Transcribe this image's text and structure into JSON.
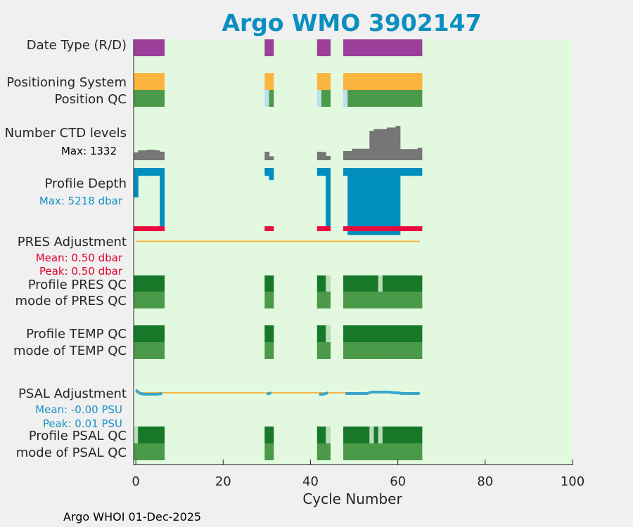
{
  "title": "Argo WMO 3902147",
  "footer": "Argo WHOI 01-Dec-2025",
  "colors": {
    "background": "#e2f9e0",
    "title": "#0b8fc0",
    "date_type": "#9b3f9a",
    "positioning": "#fbb53e",
    "qc_good": "#4a9a49",
    "qc_dark": "#167828",
    "qc_light": "#b8dcba",
    "pos_light": "#bde0ef",
    "ctd": "#767676",
    "depth": "#008ebe",
    "pres_red": "#ea0a3d",
    "adj_line": "#f5b744",
    "psal_line": "#3aa7c9",
    "stat_red": "#e0002d",
    "stat_blue": "#1792c2"
  },
  "rows": {
    "date_type": "Date Type (R/D)",
    "positioning_system": "Positioning System",
    "position_qc": "Position QC",
    "number_ctd_levels": "Number CTD levels",
    "ctd_max": "Max: 1332",
    "profile_depth": "Profile Depth",
    "depth_max": "Max: 5218 dbar",
    "pres_adjustment": "PRES Adjustment",
    "pres_mean": "Mean: 0.50 dbar",
    "pres_peak": "Peak: 0.50 dbar",
    "profile_pres_qc": "Profile PRES QC",
    "mode_pres_qc": "mode of PRES QC",
    "profile_temp_qc": "Profile TEMP QC",
    "mode_temp_qc": "mode of TEMP QC",
    "psal_adjustment": "PSAL Adjustment",
    "psal_mean": "Mean: -0.00 PSU",
    "psal_peak": "Peak: 0.01 PSU",
    "profile_psal_qc": "Profile PSAL QC",
    "mode_psal_qc": "mode of PSAL QC"
  },
  "chart_data": {
    "type": "bar",
    "title": "Argo WMO 3902147",
    "xlabel": "Cycle Number",
    "xlim": [
      -0.5,
      100
    ],
    "xticks": [
      0,
      20,
      40,
      60,
      80,
      100
    ],
    "grid": false,
    "legend": "none",
    "cycles": [
      0,
      1,
      2,
      3,
      4,
      5,
      6,
      30,
      31,
      42,
      43,
      44,
      48,
      49,
      50,
      51,
      52,
      53,
      54,
      55,
      56,
      57,
      58,
      59,
      60,
      61,
      62,
      63,
      64,
      65
    ],
    "ctd_levels_max": 1332,
    "ctd_levels": [
      240,
      300,
      300,
      320,
      320,
      300,
      260,
      260,
      120,
      260,
      250,
      130,
      280,
      280,
      350,
      350,
      350,
      350,
      900,
      950,
      950,
      950,
      1000,
      1000,
      1050,
      340,
      340,
      340,
      340,
      380
    ],
    "profile_depth_max_dbar": 5218,
    "profile_depth": [
      1900,
      510,
      510,
      510,
      510,
      510,
      3900,
      510,
      780,
      510,
      510,
      3900,
      510,
      4330,
      4330,
      4330,
      4330,
      4330,
      4330,
      4330,
      4330,
      4330,
      4330,
      4330,
      4330,
      510,
      510,
      510,
      510,
      510
    ],
    "pres_adjustment_mean": 0.5,
    "pres_adjustment_peak": 0.5,
    "psal_adjustment_mean": -0.0,
    "psal_adjustment_peak": 0.01,
    "profile_pres_qc": [
      "A",
      "A",
      "A",
      "A",
      "A",
      "A",
      "A",
      "A",
      "A",
      "A",
      "A",
      "B",
      "A",
      "A",
      "A",
      "A",
      "A",
      "A",
      "A",
      "A",
      "C",
      "A",
      "A",
      "A",
      "A",
      "A",
      "A",
      "A",
      "A",
      "A"
    ],
    "profile_psal_qc": [
      "B",
      "A",
      "A",
      "A",
      "A",
      "A",
      "A",
      "A",
      "A",
      "A",
      "A",
      "B",
      "A",
      "A",
      "A",
      "A",
      "A",
      "A",
      "B",
      "A",
      "C",
      "A",
      "A",
      "A",
      "A",
      "A",
      "A",
      "A",
      "A",
      "A"
    ],
    "position_qc_light": [
      30,
      42,
      48
    ]
  }
}
